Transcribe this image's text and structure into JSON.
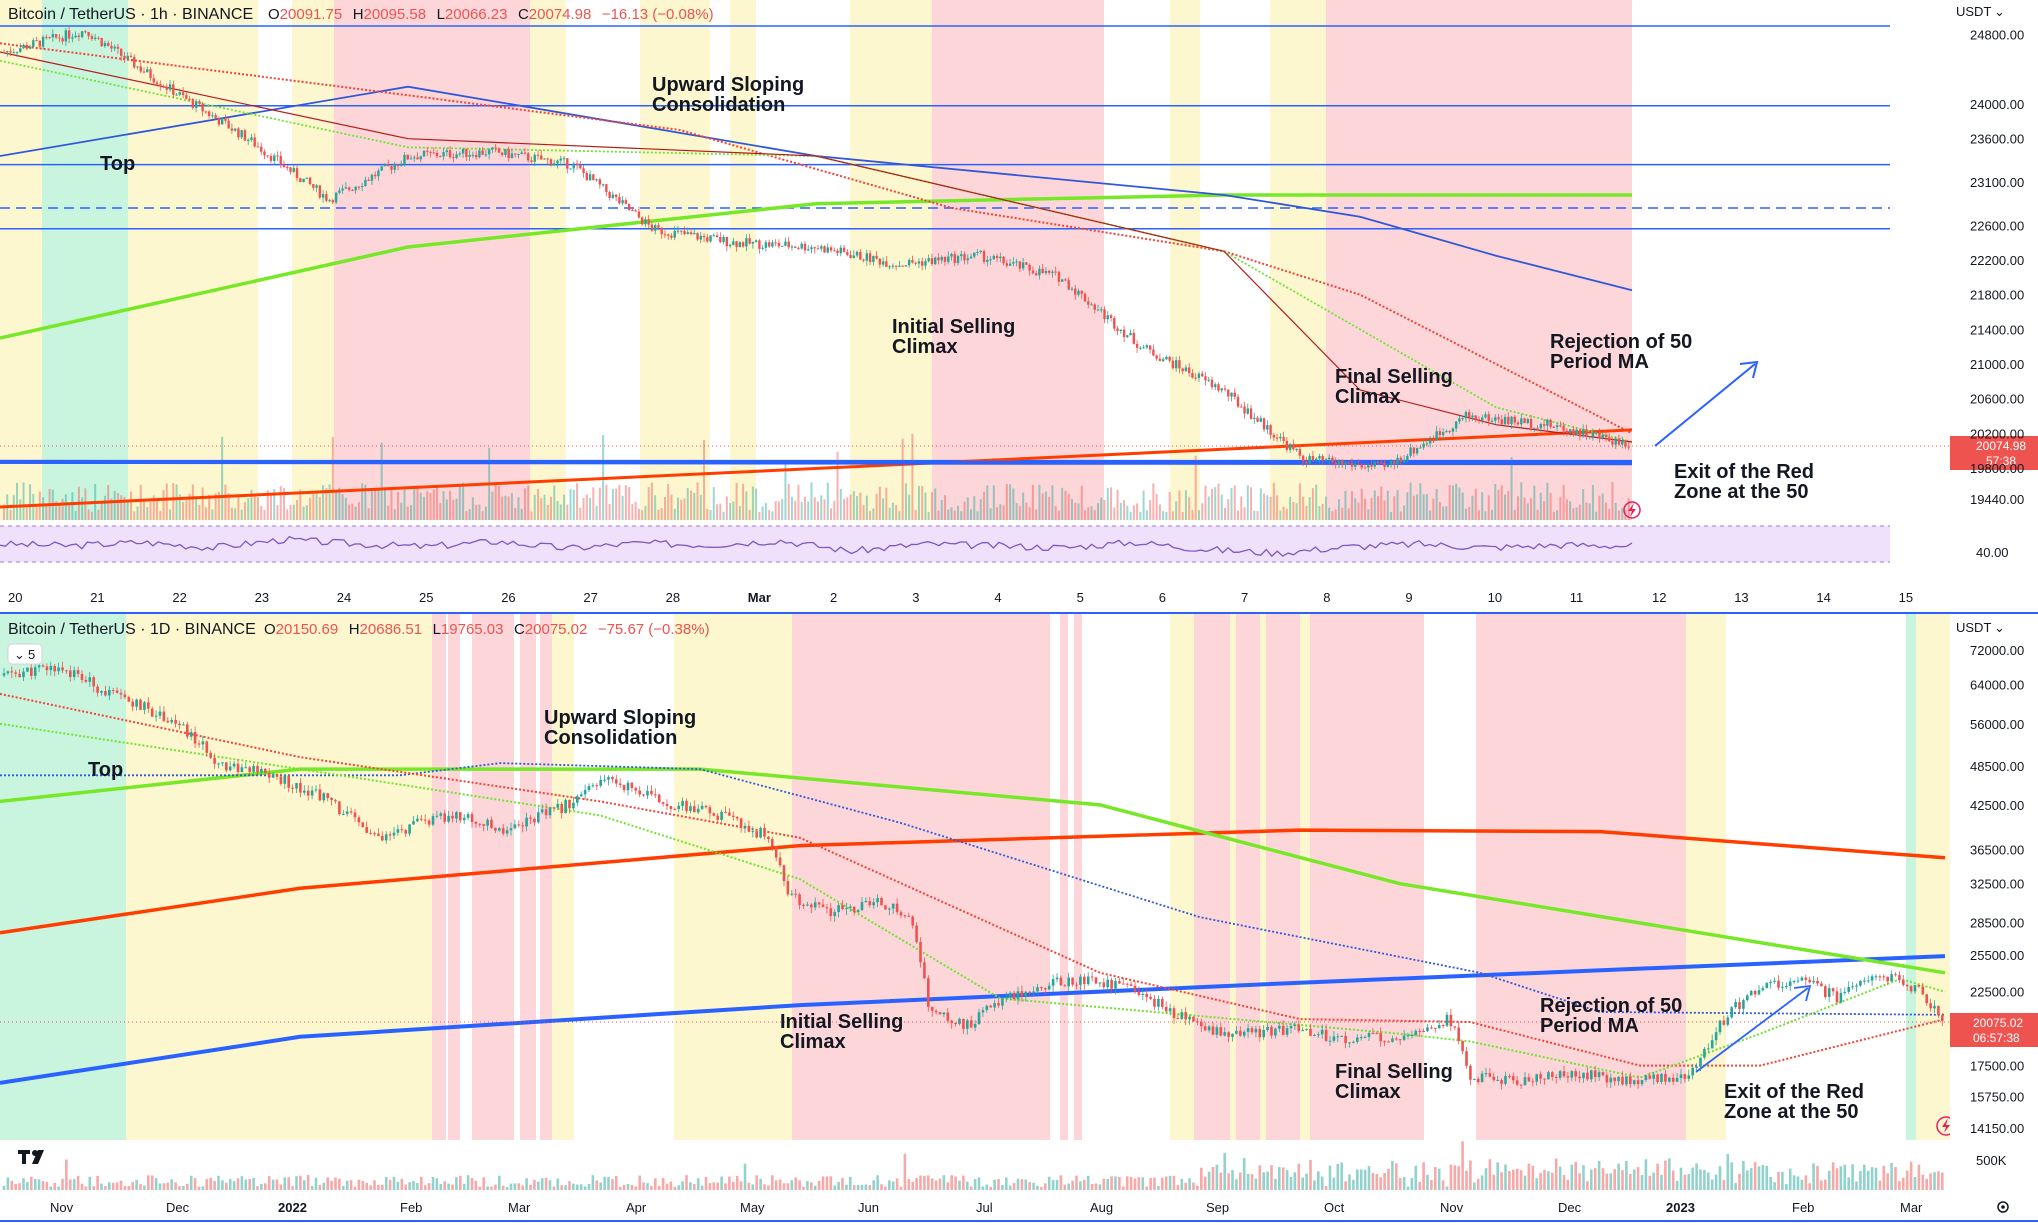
{
  "chart_data": [
    {
      "type": "candlestick",
      "title": "Bitcoin / TetherUS · 1h · BINANCE",
      "ohlc": {
        "o_label": "O",
        "o": "20091.75",
        "h_label": "H",
        "h": "20095.58",
        "l_label": "L",
        "l": "20066.23",
        "c_label": "C",
        "c": "20074.98",
        "change": "−16.13 (−0.08%)"
      },
      "currency": "USDT",
      "price_label": {
        "value": "20074.98",
        "timer": "57:38"
      },
      "ylim": [
        19200,
        25200
      ],
      "y_ticks": [
        "24800.00",
        "24000.00",
        "23600.00",
        "23100.00",
        "22600.00",
        "22200.00",
        "21800.00",
        "21400.00",
        "21000.00",
        "20600.00",
        "20200.00",
        "19800.00",
        "19440.00"
      ],
      "x_ticks": [
        "20",
        "21",
        "22",
        "23",
        "24",
        "25",
        "26",
        "27",
        "28",
        "Mar",
        "2",
        "3",
        "4",
        "5",
        "6",
        "7",
        "8",
        "9",
        "10",
        "11",
        "12",
        "13",
        "14",
        "15"
      ],
      "horizontal_levels": [
        24900,
        23980,
        23300,
        22800,
        22560,
        19870
      ],
      "annotations": [
        "Top",
        "Upward Sloping\nConsolidation",
        "Initial Selling\nClimax",
        "Final Selling\nClimax",
        "Rejection of 50\nPeriod MA",
        "Exit of the Red\nZone at the 50"
      ],
      "series": [
        {
          "name": "",
          "color": "#ff3d00",
          "x": [
            0,
            12
          ],
          "values": [
            19350,
            20240
          ]
        },
        {
          "name": "",
          "color": "#2962ff",
          "x": [
            0,
            12
          ],
          "values": [
            19870,
            19855
          ]
        },
        {
          "name": "",
          "color": "#76e827",
          "x": [
            0,
            3,
            6,
            9,
            12
          ],
          "values": [
            21300,
            22350,
            22850,
            22950,
            22950
          ]
        },
        {
          "name": "",
          "color": "#3058d8",
          "x": [
            0,
            3,
            6,
            9,
            10,
            11,
            12
          ],
          "values": [
            23400,
            24200,
            23400,
            22950,
            22700,
            22250,
            21850
          ]
        },
        {
          "name": "",
          "color": "#f44336",
          "x": [
            0,
            3,
            5,
            7,
            9,
            10,
            11,
            12
          ],
          "values": [
            24700,
            24100,
            23700,
            22800,
            22300,
            21800,
            21000,
            20200
          ]
        },
        {
          "name": "",
          "color": "#6ee332",
          "x": [
            0,
            3,
            6,
            9,
            10,
            11,
            12
          ],
          "values": [
            24500,
            23500,
            23400,
            22300,
            21400,
            20500,
            20100
          ]
        },
        {
          "name": "",
          "color": "#b71c1c",
          "x": [
            0,
            3,
            6,
            9,
            10,
            11,
            12
          ],
          "values": [
            24600,
            23600,
            23400,
            22300,
            20700,
            20300,
            20100
          ]
        }
      ],
      "close_path": {
        "x": [
          0,
          1,
          2,
          3,
          4,
          5,
          6,
          7,
          8,
          9,
          10,
          11,
          12
        ],
        "values": [
          24600,
          24850,
          24200,
          23600,
          22900,
          23400,
          23450,
          23300,
          22550,
          22400,
          22350,
          22150,
          22250
        ]
      },
      "close_path_tail": {
        "x": [
          12,
          13,
          14,
          15,
          16,
          17,
          18,
          19,
          20
        ],
        "values": [
          22250,
          22000,
          21200,
          20700,
          19900,
          19800,
          20400,
          20300,
          20080
        ]
      },
      "oscillator": {
        "label": "40.00",
        "values": [
          50,
          48,
          52,
          46,
          55,
          50,
          47,
          53,
          45,
          51,
          49,
          54,
          42,
          50,
          48,
          46,
          52,
          44,
          40,
          47,
          50,
          46,
          49,
          48
        ]
      },
      "icon": "lightning-icon"
    },
    {
      "type": "candlestick",
      "title": "Bitcoin / TetherUS · 1D · BINANCE",
      "ohlc": {
        "o_label": "O",
        "o": "20150.69",
        "h_label": "H",
        "h": "20686.51",
        "l_label": "L",
        "l": "19765.03",
        "c_label": "C",
        "c": "20075.02",
        "change": "−75.67 (−0.38%)"
      },
      "currency": "USDT",
      "price_label": {
        "value": "20075.02",
        "timer": "06:57:38"
      },
      "y_ticks": [
        "72000.00",
        "64000.00",
        "56000.00",
        "48500.00",
        "42500.00",
        "36500.00",
        "32500.00",
        "28500.00",
        "25500.00",
        "22500.00",
        "17500.00",
        "15750.00",
        "14150.00"
      ],
      "x_ticks": [
        "Nov",
        "Dec",
        "2022",
        "Feb",
        "Mar",
        "Apr",
        "May",
        "Jun",
        "Jul",
        "Aug",
        "Sep",
        "Oct",
        "Nov",
        "Dec",
        "2023",
        "Feb",
        "Mar"
      ],
      "volume_label": "500K",
      "legend_box": "5",
      "annotations": [
        "Top",
        "Upward Sloping\nConsolidation",
        "Initial Selling\nClimax",
        "Final Selling\nClimax",
        "Rejection of 50\nPeriod MA",
        "Exit of the Red\nZone at the 50"
      ],
      "icon": "lightning-icon",
      "logo": "tradingview-logo"
    }
  ],
  "colors": {
    "red_zone": "#fcd6d8",
    "yellow_zone": "#fdf7cf",
    "green_zone": "#c9f5de",
    "axis_text": "#131722",
    "price_label": "#ef5350",
    "divider": "#2962ff"
  }
}
